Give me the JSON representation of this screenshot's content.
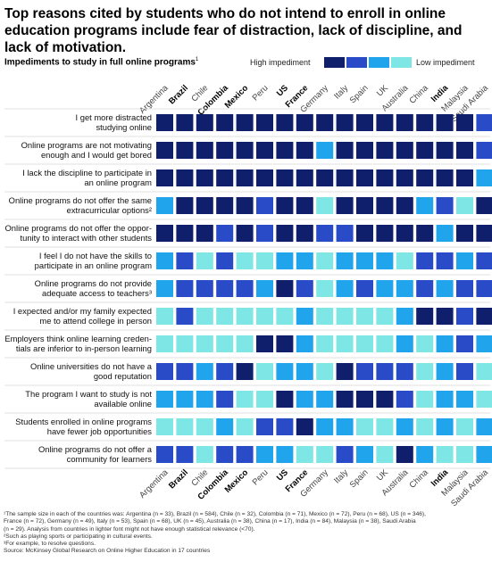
{
  "title": "Top reasons cited by students who do not intend to enroll in online education programs include fear of distraction, lack of discipline, and lack of motivation.",
  "subtitle": "Impediments to study in full online programs",
  "subtitle_sup": "1",
  "legend": {
    "high_label": "High impediment",
    "low_label": "Low impediment",
    "colors": [
      "#0f1f6b",
      "#2a4bc7",
      "#20a4ec",
      "#7fe6e6"
    ]
  },
  "chart_data": {
    "type": "heatmap",
    "scale": "1 = high impediment, 4 = low impediment",
    "countries": [
      {
        "name": "Argentina",
        "bold": false
      },
      {
        "name": "Brazil",
        "bold": true
      },
      {
        "name": "Chile",
        "bold": false
      },
      {
        "name": "Colombia",
        "bold": true
      },
      {
        "name": "Mexico",
        "bold": true
      },
      {
        "name": "Peru",
        "bold": false
      },
      {
        "name": "US",
        "bold": true
      },
      {
        "name": "France",
        "bold": true
      },
      {
        "name": "Germany",
        "bold": false
      },
      {
        "name": "Italy",
        "bold": false
      },
      {
        "name": "Spain",
        "bold": false
      },
      {
        "name": "UK",
        "bold": false
      },
      {
        "name": "Australia",
        "bold": false
      },
      {
        "name": "China",
        "bold": false
      },
      {
        "name": "India",
        "bold": true
      },
      {
        "name": "Malaysia",
        "bold": false
      },
      {
        "name": "Saudi Arabia",
        "bold": false
      }
    ],
    "rows": [
      {
        "label": [
          "I get more distracted",
          "studying online"
        ],
        "values": [
          1,
          1,
          1,
          1,
          1,
          1,
          1,
          1,
          1,
          1,
          1,
          1,
          1,
          1,
          1,
          1,
          2
        ]
      },
      {
        "label": [
          "Online programs are not motivating",
          "enough and I would get bored"
        ],
        "values": [
          1,
          1,
          1,
          1,
          1,
          1,
          1,
          1,
          3,
          1,
          1,
          1,
          1,
          1,
          1,
          1,
          2
        ]
      },
      {
        "label": [
          "I lack the discipline to participate in",
          "an online program"
        ],
        "values": [
          1,
          1,
          1,
          1,
          1,
          1,
          1,
          1,
          1,
          1,
          1,
          1,
          1,
          1,
          1,
          1,
          3
        ]
      },
      {
        "label": [
          "Online programs do not offer the same",
          "extracurricular options²"
        ],
        "values": [
          3,
          1,
          1,
          1,
          1,
          2,
          1,
          1,
          4,
          1,
          1,
          1,
          1,
          3,
          2,
          4,
          1
        ]
      },
      {
        "label": [
          "Online programs do not offer the oppor-",
          "tunity to interact with other students"
        ],
        "values": [
          1,
          1,
          1,
          2,
          1,
          2,
          1,
          1,
          2,
          2,
          1,
          1,
          1,
          1,
          3,
          1,
          1
        ]
      },
      {
        "label": [
          "I feel I do not have the skills to",
          "participate in an online program"
        ],
        "values": [
          3,
          2,
          4,
          2,
          4,
          4,
          3,
          3,
          4,
          3,
          3,
          3,
          4,
          2,
          2,
          3,
          2
        ]
      },
      {
        "label": [
          "Online programs do not provide",
          "adequate access to teachers³"
        ],
        "values": [
          3,
          2,
          2,
          2,
          2,
          3,
          1,
          2,
          4,
          3,
          2,
          3,
          3,
          2,
          3,
          2,
          2
        ]
      },
      {
        "label": [
          "I expected and/or my family expected",
          "me to attend college in person"
        ],
        "values": [
          4,
          2,
          4,
          4,
          4,
          4,
          4,
          3,
          4,
          4,
          4,
          4,
          3,
          1,
          1,
          2,
          1
        ]
      },
      {
        "label": [
          "Employers think online learning creden-",
          "tials are inferior to in-person learning"
        ],
        "values": [
          4,
          4,
          4,
          4,
          4,
          1,
          1,
          3,
          4,
          4,
          4,
          4,
          3,
          4,
          3,
          2,
          3
        ]
      },
      {
        "label": [
          "Online universities do not have a",
          "good reputation"
        ],
        "values": [
          2,
          2,
          3,
          2,
          1,
          4,
          3,
          3,
          4,
          1,
          2,
          2,
          2,
          4,
          3,
          2,
          4
        ]
      },
      {
        "label": [
          "The program I want to study is not",
          "available online"
        ],
        "values": [
          3,
          3,
          3,
          2,
          4,
          4,
          1,
          3,
          3,
          1,
          1,
          1,
          2,
          4,
          3,
          3,
          4
        ]
      },
      {
        "label": [
          "Students enrolled in online programs",
          "have fewer job opportunities"
        ],
        "values": [
          4,
          4,
          4,
          3,
          4,
          2,
          2,
          1,
          3,
          3,
          4,
          4,
          3,
          4,
          3,
          4,
          3
        ]
      },
      {
        "label": [
          "Online programs do not offer a",
          "community for learners"
        ],
        "values": [
          2,
          2,
          4,
          2,
          2,
          3,
          3,
          4,
          4,
          2,
          3,
          4,
          1,
          3,
          4,
          4,
          3
        ]
      }
    ]
  },
  "footnotes": [
    "¹The sample size in each of the countries was: Argentina (n = 33), Brazil (n = 584), Chile (n = 32), Colombia (n = 71), Mexico (n = 72), Peru (n = 68), US (n = 346),",
    "France (n = 72), Germany (n = 49), Italy (n = 53), Spain (n = 68), UK (n = 45), Australia (n = 38), China (n = 17), India (n = 84), Malaysia (n = 38), Saudi Arabia",
    "(n = 29). Analysis from countries in lighter font might not have enough statistical relevance (<70).",
    "²Such as playing sports or participating in cultural events.",
    "³For example, to resolve questions.",
    "Source: McKinsey Global Research on Online Higher Education in 17 countries"
  ]
}
